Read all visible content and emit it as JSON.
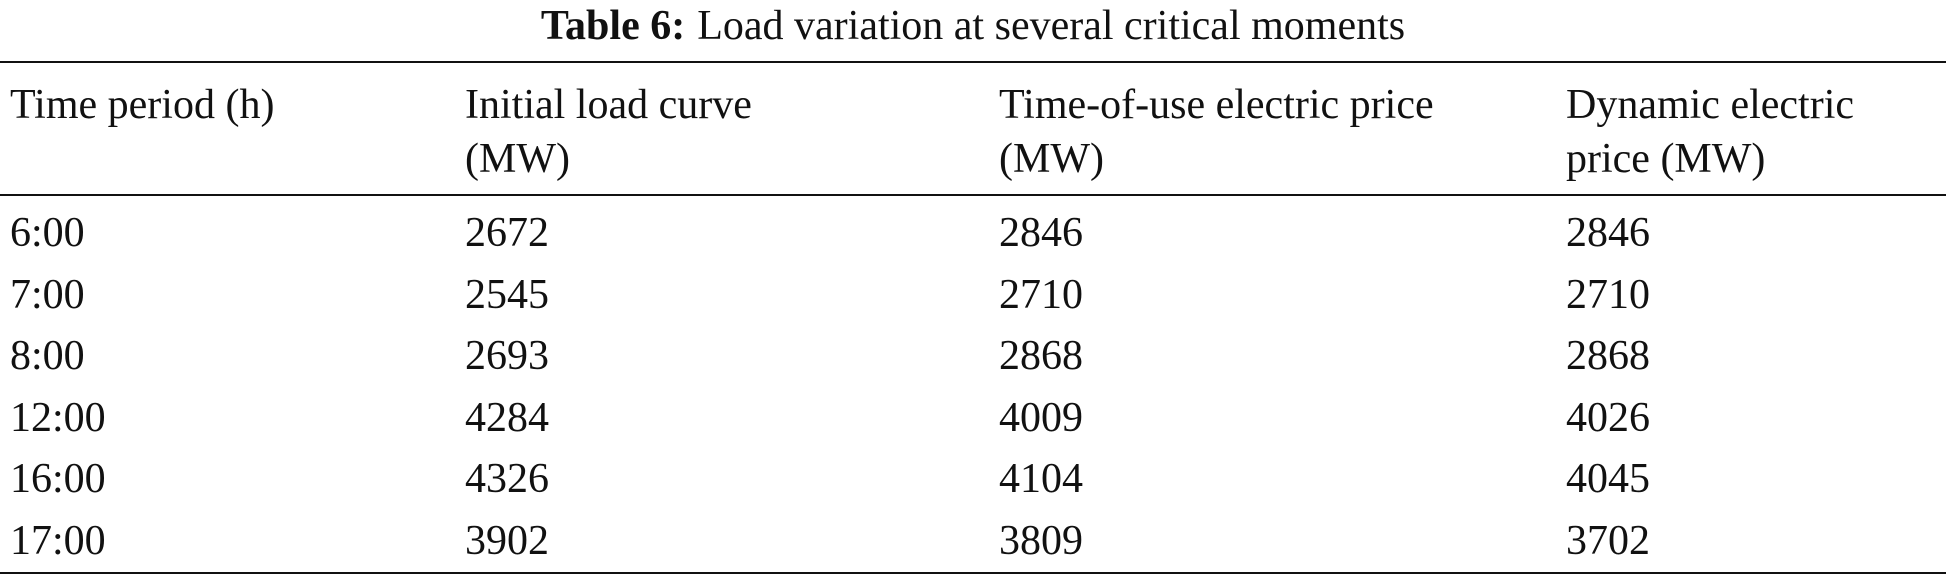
{
  "table": {
    "caption": {
      "label": "Table 6:",
      "text": "Load variation at several critical moments"
    },
    "headers": [
      [
        "Time period (h)"
      ],
      [
        "Initial load curve",
        "(MW)"
      ],
      [
        "Time-of-use electric price",
        "(MW)"
      ],
      [
        "Dynamic electric",
        "price (MW)"
      ]
    ],
    "rows": [
      [
        "6:00",
        2672,
        2846,
        2846
      ],
      [
        "7:00",
        2545,
        2710,
        2710
      ],
      [
        "8:00",
        2693,
        2868,
        2868
      ],
      [
        "12:00",
        4284,
        4009,
        4026
      ],
      [
        "16:00",
        4326,
        4104,
        4045
      ],
      [
        "17:00",
        3902,
        3809,
        3702
      ]
    ]
  }
}
